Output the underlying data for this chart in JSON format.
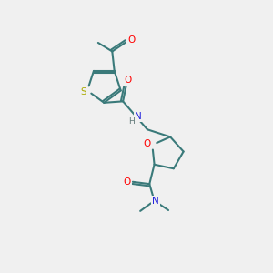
{
  "background_color": "#f0f0f0",
  "bond_color": "#3a7a7a",
  "atom_colors": {
    "O": "#ff0000",
    "N": "#2222dd",
    "S": "#aaaa00",
    "H": "#607878",
    "C": "#3a7a7a"
  },
  "figsize": [
    3.0,
    3.0
  ],
  "dpi": 100,
  "lw": 1.5,
  "doff": 0.075,
  "fs": 7.5,
  "xlim": [
    0,
    10
  ],
  "ylim": [
    0,
    10
  ]
}
